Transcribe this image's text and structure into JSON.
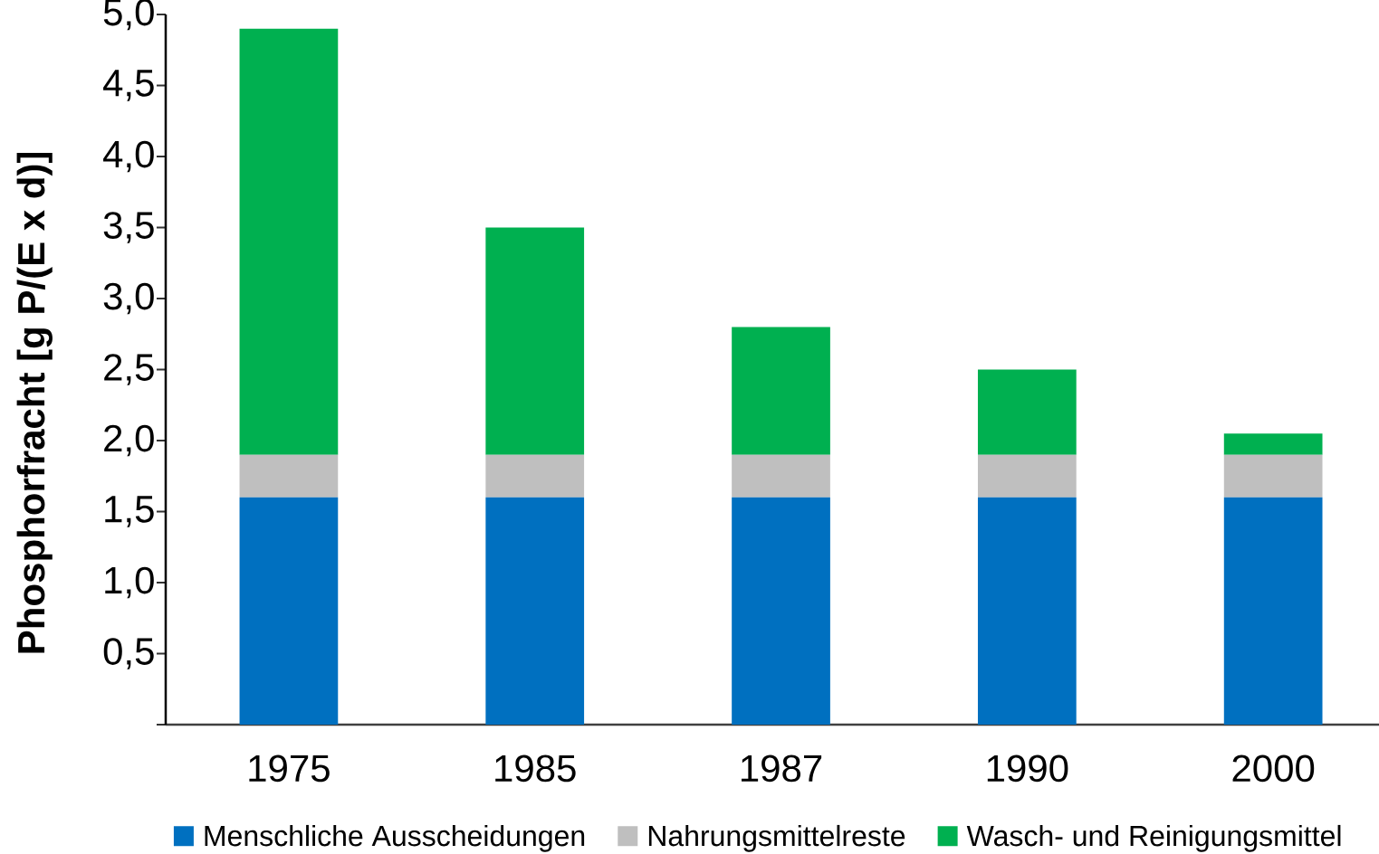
{
  "chart_data": {
    "type": "bar",
    "stacked": true,
    "ylabel": "Phosphorfracht [g P/(E x d)]",
    "categories": [
      "1975",
      "1985",
      "1987",
      "1990",
      "2000"
    ],
    "series": [
      {
        "name": "Menschliche Ausscheidungen",
        "color": "#0070c0",
        "values": [
          1.6,
          1.6,
          1.6,
          1.6,
          1.6
        ]
      },
      {
        "name": "Nahrungsmittelreste",
        "color": "#bfbfbf",
        "values": [
          0.3,
          0.3,
          0.3,
          0.3,
          0.3
        ]
      },
      {
        "name": "Wasch- und Reinigungsmittel",
        "color": "#00b050",
        "values": [
          3.0,
          1.6,
          0.9,
          0.6,
          0.15
        ]
      }
    ],
    "ylim": [
      0,
      5
    ],
    "yticks": [
      {
        "value": 0,
        "label": null
      },
      {
        "value": 0.5,
        "label": "0,5"
      },
      {
        "value": 1.0,
        "label": "1,0"
      },
      {
        "value": 1.5,
        "label": "1,5"
      },
      {
        "value": 2.0,
        "label": "2,0"
      },
      {
        "value": 2.5,
        "label": "2,5"
      },
      {
        "value": 3.0,
        "label": "3,0"
      },
      {
        "value": 3.5,
        "label": "3,5"
      },
      {
        "value": 4.0,
        "label": "4,0"
      },
      {
        "value": 4.5,
        "label": "4,5"
      },
      {
        "value": 5.0,
        "label": "5,0"
      }
    ],
    "legend": "bottom"
  }
}
